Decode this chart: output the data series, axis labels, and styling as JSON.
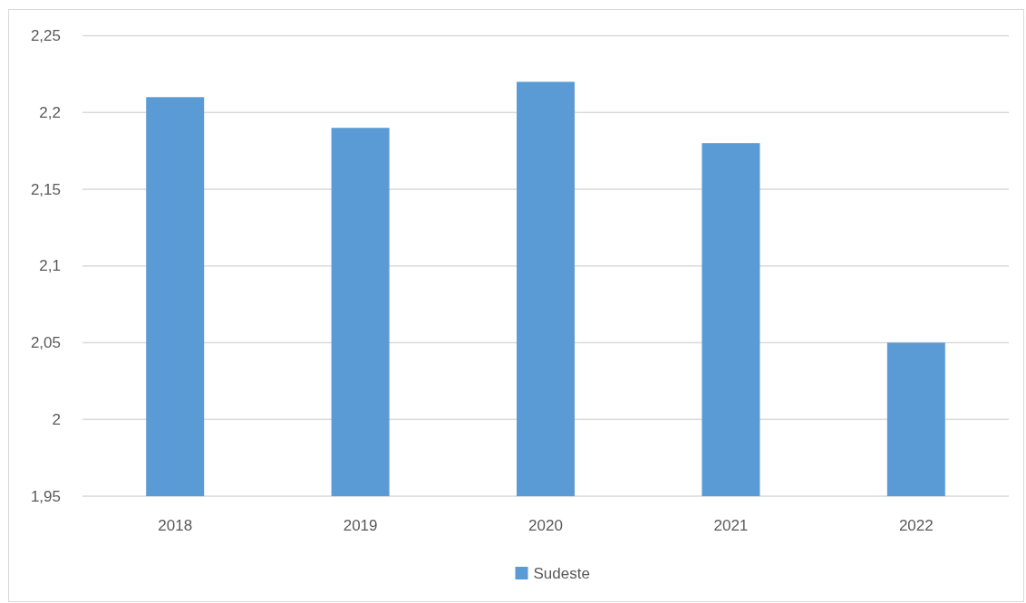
{
  "chart_data": {
    "type": "bar",
    "categories": [
      "2018",
      "2019",
      "2020",
      "2021",
      "2022"
    ],
    "series": [
      {
        "name": "Sudeste",
        "color": "#5b9bd5",
        "values": [
          2.21,
          2.19,
          2.22,
          2.18,
          2.05
        ]
      }
    ],
    "ylim": [
      1.95,
      2.25
    ],
    "yticks": [
      {
        "value": 1.95,
        "label": "1,95"
      },
      2,
      {
        "value": 2.05,
        "label": "2,05"
      },
      {
        "value": 2.1,
        "label": "2,1"
      },
      {
        "value": 2.15,
        "label": "2,15"
      },
      {
        "value": 2.2,
        "label": "2,2"
      },
      {
        "value": 2.25,
        "label": "2,25"
      }
    ],
    "grid": "y",
    "legend": "bottom"
  }
}
